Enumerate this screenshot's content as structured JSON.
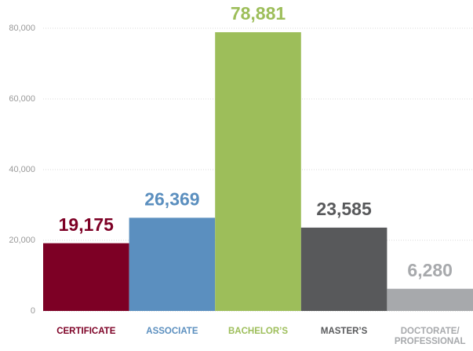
{
  "chart_data": {
    "type": "bar",
    "categories": [
      "CERTIFICATE",
      "ASSOCIATE",
      "BACHELOR’S",
      "MASTER’S",
      "DOCTORATE/ PROFESSIONAL"
    ],
    "values": [
      19175,
      26369,
      78881,
      23585,
      6280
    ],
    "value_labels": [
      "19,175",
      "26,369",
      "78,881",
      "23,585",
      "6,280"
    ],
    "colors": [
      "#7d0025",
      "#5b8fbf",
      "#9dbe5a",
      "#58595b",
      "#a7a9ac"
    ],
    "ylim": [
      0,
      80000
    ],
    "yticks": [
      0,
      {
        "value": 20000,
        "label": "20,000"
      },
      {
        "value": 40000,
        "label": "40,000"
      },
      {
        "value": 60000,
        "label": "60,000"
      },
      {
        "value": 80000,
        "label": "80,000"
      }
    ],
    "grid": true
  }
}
